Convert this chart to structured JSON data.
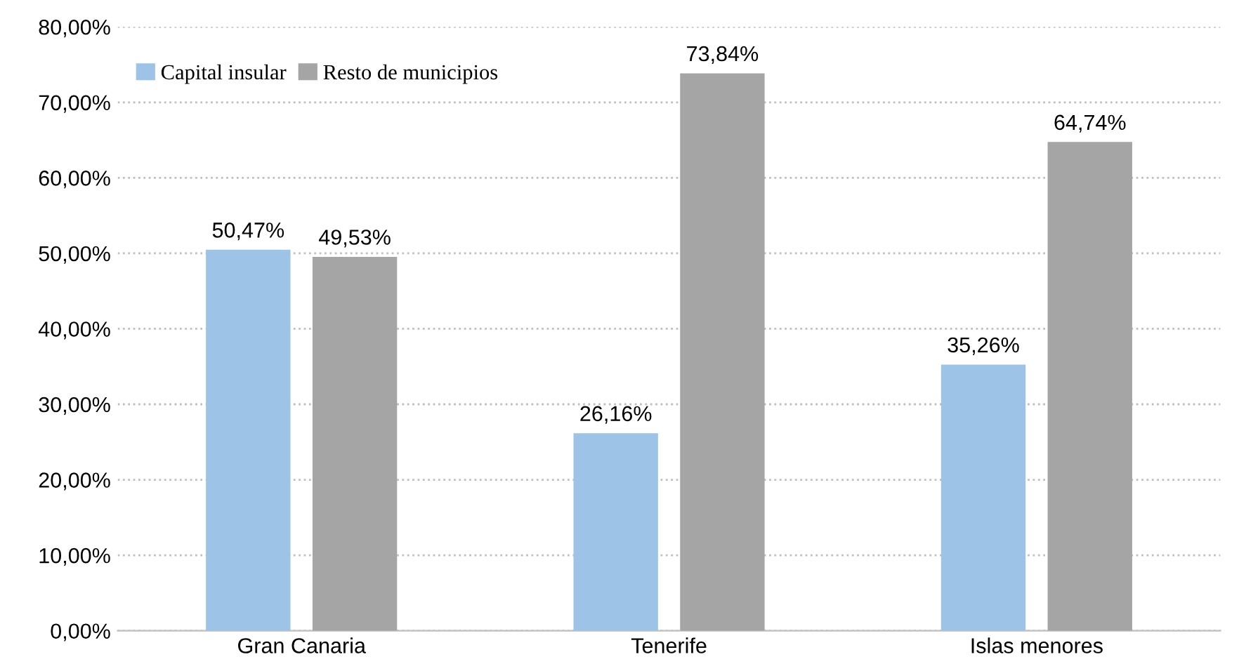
{
  "chart_data": {
    "type": "bar",
    "categories": [
      "Gran Canaria",
      "Tenerife",
      "Islas menores"
    ],
    "series": [
      {
        "name": "Capital insular",
        "color": "#9dc3e6",
        "values": [
          50.47,
          26.16,
          35.26
        ],
        "value_labels": [
          "50,47%",
          "26,16%",
          "35,26%"
        ]
      },
      {
        "name": "Resto de municipios",
        "color": "#a5a5a5",
        "values": [
          49.53,
          73.84,
          64.74
        ],
        "value_labels": [
          "49,53%",
          "73,84%",
          "64,74%"
        ]
      }
    ],
    "ylim": [
      0,
      80
    ],
    "yticks": [
      {
        "value": 0,
        "label": "0,00%"
      },
      {
        "value": 10,
        "label": "10,00%"
      },
      {
        "value": 20,
        "label": "20,00%"
      },
      {
        "value": 30,
        "label": "30,00%"
      },
      {
        "value": 40,
        "label": "40,00%"
      },
      {
        "value": 50,
        "label": "50,00%"
      },
      {
        "value": 60,
        "label": "60,00%"
      },
      {
        "value": 70,
        "label": "70,00%"
      },
      {
        "value": 80,
        "label": "80,00%"
      }
    ],
    "grid": "y",
    "legend": "top left"
  }
}
